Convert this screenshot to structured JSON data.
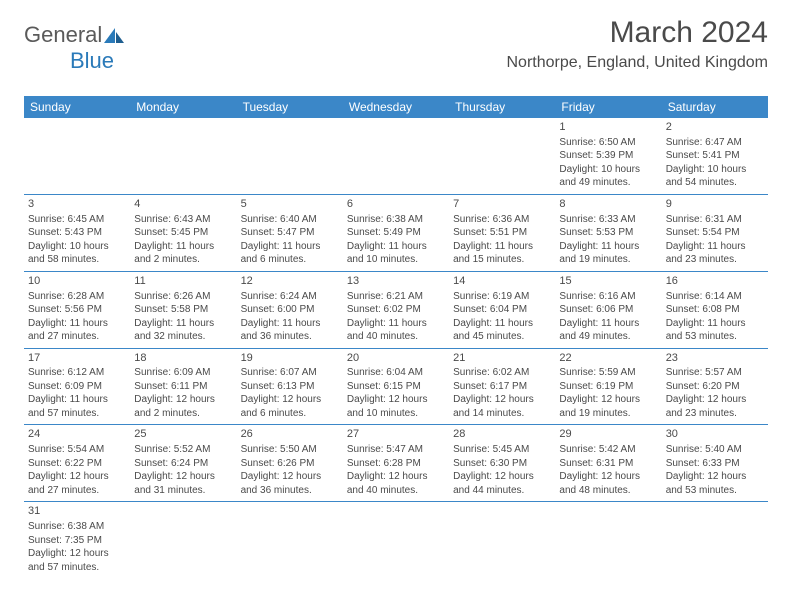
{
  "logo": {
    "text1": "General",
    "text2": "Blue"
  },
  "title": "March 2024",
  "location": "Northorpe, England, United Kingdom",
  "colors": {
    "header_bg": "#3b87c8",
    "header_fg": "#ffffff",
    "rule": "#3b87c8",
    "text": "#4a4a4a",
    "logo_blue": "#2a7ab9"
  },
  "daynames": [
    "Sunday",
    "Monday",
    "Tuesday",
    "Wednesday",
    "Thursday",
    "Friday",
    "Saturday"
  ],
  "weeks": [
    [
      null,
      null,
      null,
      null,
      null,
      {
        "n": "1",
        "sr": "Sunrise: 6:50 AM",
        "ss": "Sunset: 5:39 PM",
        "d1": "Daylight: 10 hours",
        "d2": "and 49 minutes."
      },
      {
        "n": "2",
        "sr": "Sunrise: 6:47 AM",
        "ss": "Sunset: 5:41 PM",
        "d1": "Daylight: 10 hours",
        "d2": "and 54 minutes."
      }
    ],
    [
      {
        "n": "3",
        "sr": "Sunrise: 6:45 AM",
        "ss": "Sunset: 5:43 PM",
        "d1": "Daylight: 10 hours",
        "d2": "and 58 minutes."
      },
      {
        "n": "4",
        "sr": "Sunrise: 6:43 AM",
        "ss": "Sunset: 5:45 PM",
        "d1": "Daylight: 11 hours",
        "d2": "and 2 minutes."
      },
      {
        "n": "5",
        "sr": "Sunrise: 6:40 AM",
        "ss": "Sunset: 5:47 PM",
        "d1": "Daylight: 11 hours",
        "d2": "and 6 minutes."
      },
      {
        "n": "6",
        "sr": "Sunrise: 6:38 AM",
        "ss": "Sunset: 5:49 PM",
        "d1": "Daylight: 11 hours",
        "d2": "and 10 minutes."
      },
      {
        "n": "7",
        "sr": "Sunrise: 6:36 AM",
        "ss": "Sunset: 5:51 PM",
        "d1": "Daylight: 11 hours",
        "d2": "and 15 minutes."
      },
      {
        "n": "8",
        "sr": "Sunrise: 6:33 AM",
        "ss": "Sunset: 5:53 PM",
        "d1": "Daylight: 11 hours",
        "d2": "and 19 minutes."
      },
      {
        "n": "9",
        "sr": "Sunrise: 6:31 AM",
        "ss": "Sunset: 5:54 PM",
        "d1": "Daylight: 11 hours",
        "d2": "and 23 minutes."
      }
    ],
    [
      {
        "n": "10",
        "sr": "Sunrise: 6:28 AM",
        "ss": "Sunset: 5:56 PM",
        "d1": "Daylight: 11 hours",
        "d2": "and 27 minutes."
      },
      {
        "n": "11",
        "sr": "Sunrise: 6:26 AM",
        "ss": "Sunset: 5:58 PM",
        "d1": "Daylight: 11 hours",
        "d2": "and 32 minutes."
      },
      {
        "n": "12",
        "sr": "Sunrise: 6:24 AM",
        "ss": "Sunset: 6:00 PM",
        "d1": "Daylight: 11 hours",
        "d2": "and 36 minutes."
      },
      {
        "n": "13",
        "sr": "Sunrise: 6:21 AM",
        "ss": "Sunset: 6:02 PM",
        "d1": "Daylight: 11 hours",
        "d2": "and 40 minutes."
      },
      {
        "n": "14",
        "sr": "Sunrise: 6:19 AM",
        "ss": "Sunset: 6:04 PM",
        "d1": "Daylight: 11 hours",
        "d2": "and 45 minutes."
      },
      {
        "n": "15",
        "sr": "Sunrise: 6:16 AM",
        "ss": "Sunset: 6:06 PM",
        "d1": "Daylight: 11 hours",
        "d2": "and 49 minutes."
      },
      {
        "n": "16",
        "sr": "Sunrise: 6:14 AM",
        "ss": "Sunset: 6:08 PM",
        "d1": "Daylight: 11 hours",
        "d2": "and 53 minutes."
      }
    ],
    [
      {
        "n": "17",
        "sr": "Sunrise: 6:12 AM",
        "ss": "Sunset: 6:09 PM",
        "d1": "Daylight: 11 hours",
        "d2": "and 57 minutes."
      },
      {
        "n": "18",
        "sr": "Sunrise: 6:09 AM",
        "ss": "Sunset: 6:11 PM",
        "d1": "Daylight: 12 hours",
        "d2": "and 2 minutes."
      },
      {
        "n": "19",
        "sr": "Sunrise: 6:07 AM",
        "ss": "Sunset: 6:13 PM",
        "d1": "Daylight: 12 hours",
        "d2": "and 6 minutes."
      },
      {
        "n": "20",
        "sr": "Sunrise: 6:04 AM",
        "ss": "Sunset: 6:15 PM",
        "d1": "Daylight: 12 hours",
        "d2": "and 10 minutes."
      },
      {
        "n": "21",
        "sr": "Sunrise: 6:02 AM",
        "ss": "Sunset: 6:17 PM",
        "d1": "Daylight: 12 hours",
        "d2": "and 14 minutes."
      },
      {
        "n": "22",
        "sr": "Sunrise: 5:59 AM",
        "ss": "Sunset: 6:19 PM",
        "d1": "Daylight: 12 hours",
        "d2": "and 19 minutes."
      },
      {
        "n": "23",
        "sr": "Sunrise: 5:57 AM",
        "ss": "Sunset: 6:20 PM",
        "d1": "Daylight: 12 hours",
        "d2": "and 23 minutes."
      }
    ],
    [
      {
        "n": "24",
        "sr": "Sunrise: 5:54 AM",
        "ss": "Sunset: 6:22 PM",
        "d1": "Daylight: 12 hours",
        "d2": "and 27 minutes."
      },
      {
        "n": "25",
        "sr": "Sunrise: 5:52 AM",
        "ss": "Sunset: 6:24 PM",
        "d1": "Daylight: 12 hours",
        "d2": "and 31 minutes."
      },
      {
        "n": "26",
        "sr": "Sunrise: 5:50 AM",
        "ss": "Sunset: 6:26 PM",
        "d1": "Daylight: 12 hours",
        "d2": "and 36 minutes."
      },
      {
        "n": "27",
        "sr": "Sunrise: 5:47 AM",
        "ss": "Sunset: 6:28 PM",
        "d1": "Daylight: 12 hours",
        "d2": "and 40 minutes."
      },
      {
        "n": "28",
        "sr": "Sunrise: 5:45 AM",
        "ss": "Sunset: 6:30 PM",
        "d1": "Daylight: 12 hours",
        "d2": "and 44 minutes."
      },
      {
        "n": "29",
        "sr": "Sunrise: 5:42 AM",
        "ss": "Sunset: 6:31 PM",
        "d1": "Daylight: 12 hours",
        "d2": "and 48 minutes."
      },
      {
        "n": "30",
        "sr": "Sunrise: 5:40 AM",
        "ss": "Sunset: 6:33 PM",
        "d1": "Daylight: 12 hours",
        "d2": "and 53 minutes."
      }
    ],
    [
      {
        "n": "31",
        "sr": "Sunrise: 6:38 AM",
        "ss": "Sunset: 7:35 PM",
        "d1": "Daylight: 12 hours",
        "d2": "and 57 minutes."
      },
      null,
      null,
      null,
      null,
      null,
      null
    ]
  ]
}
